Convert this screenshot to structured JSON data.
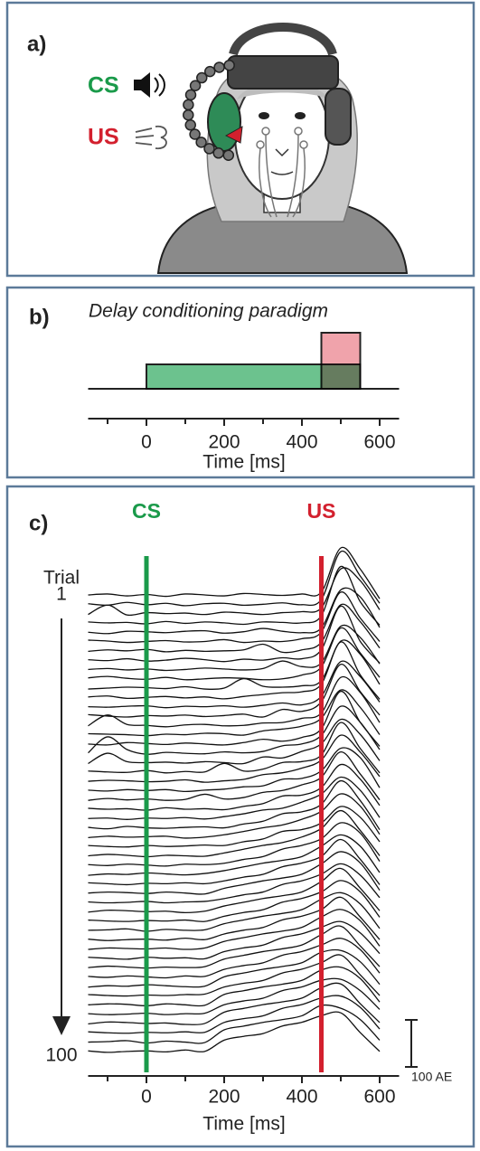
{
  "panel_a": {
    "label": "a)",
    "cs": "CS",
    "us": "US"
  },
  "chart_data": [
    {
      "type": "timeline",
      "label": "b)",
      "title": "Delay conditioning paradigm",
      "x_label": "Time [ms]",
      "xlim": [
        -150,
        650
      ],
      "xticks": [
        0,
        200,
        400,
        600
      ],
      "minor_xticks": [
        -100,
        100,
        300,
        500
      ],
      "stimuli": [
        {
          "start": 0,
          "end": 550,
          "color": "#6cc28e"
        },
        {
          "start": 450,
          "end": 550,
          "color": "#f0a3ab"
        }
      ]
    },
    {
      "type": "traces",
      "label": "c)",
      "x_label": "Time [ms]",
      "y_label": "Trial",
      "xlim": [
        -150,
        650
      ],
      "xticks": [
        0,
        200,
        400,
        600
      ],
      "minor_xticks": [
        -100,
        100,
        300,
        500
      ],
      "ylim": [
        1,
        100
      ],
      "yticks": [
        1,
        100
      ],
      "markers": [
        {
          "label": "CS",
          "x": 0,
          "color": "#1a9a4a"
        },
        {
          "label": "US",
          "x": 450,
          "color": "#d3202e"
        }
      ],
      "scale_bar": {
        "value": 100,
        "label": "100 AE"
      },
      "x": [
        -150,
        -100,
        -50,
        0,
        50,
        100,
        150,
        200,
        250,
        300,
        350,
        400,
        450,
        500,
        550,
        600
      ],
      "traces": [
        {
          "trial": 1,
          "values": [
            0,
            2,
            -2,
            1,
            -3,
            2,
            0,
            -2,
            3,
            1,
            -1,
            2,
            6,
            100,
            55,
            -8
          ]
        },
        {
          "trial": 3,
          "values": [
            1,
            -2,
            4,
            -1,
            2,
            -3,
            1,
            2,
            -2,
            0,
            3,
            -1,
            10,
            112,
            60,
            2
          ]
        },
        {
          "trial": 5,
          "values": [
            -2,
            18,
            -3,
            2,
            0,
            1,
            -2,
            3,
            1,
            -2,
            2,
            4,
            12,
            95,
            70,
            8
          ]
        },
        {
          "trial": 7,
          "values": [
            2,
            0,
            1,
            -2,
            3,
            -1,
            2,
            0,
            -3,
            2,
            1,
            0,
            15,
            120,
            45,
            -5
          ]
        },
        {
          "trial": 9,
          "values": [
            0,
            -3,
            2,
            1,
            -1,
            2,
            3,
            -2,
            1,
            8,
            2,
            -1,
            9,
            90,
            75,
            10
          ]
        },
        {
          "trial": 11,
          "values": [
            3,
            1,
            -2,
            0,
            2,
            -1,
            0,
            4,
            -2,
            1,
            0,
            6,
            20,
            105,
            50,
            0
          ]
        },
        {
          "trial": 13,
          "values": [
            -1,
            2,
            0,
            3,
            -2,
            1,
            -1,
            0,
            2,
            14,
            -3,
            2,
            18,
            98,
            62,
            6
          ]
        },
        {
          "trial": 15,
          "values": [
            1,
            -1,
            3,
            -2,
            0,
            4,
            1,
            -3,
            2,
            0,
            5,
            3,
            22,
            115,
            40,
            -6
          ]
        },
        {
          "trial": 17,
          "values": [
            0,
            2,
            -1,
            1,
            -2,
            0,
            3,
            1,
            -1,
            2,
            18,
            6,
            14,
            92,
            68,
            12
          ]
        },
        {
          "trial": 19,
          "values": [
            2,
            5,
            1,
            -1,
            3,
            -2,
            0,
            2,
            1,
            -2,
            0,
            8,
            25,
            108,
            55,
            3
          ]
        },
        {
          "trial": 21,
          "values": [
            -2,
            0,
            2,
            1,
            -1,
            3,
            -2,
            0,
            20,
            4,
            2,
            5,
            16,
            100,
            72,
            8
          ]
        },
        {
          "trial": 23,
          "values": [
            1,
            3,
            -2,
            0,
            2,
            -1,
            1,
            -3,
            2,
            6,
            10,
            12,
            28,
            118,
            48,
            -4
          ]
        },
        {
          "trial": 25,
          "values": [
            0,
            -1,
            1,
            2,
            -2,
            1,
            0,
            2,
            -1,
            3,
            8,
            4,
            22,
            96,
            64,
            10
          ]
        },
        {
          "trial": 27,
          "values": [
            3,
            0,
            -2,
            1,
            0,
            2,
            -1,
            1,
            4,
            -2,
            14,
            10,
            30,
            110,
            52,
            2
          ]
        },
        {
          "trial": 29,
          "values": [
            -1,
            22,
            2,
            0,
            -3,
            1,
            2,
            -1,
            0,
            5,
            6,
            15,
            26,
            102,
            70,
            6
          ]
        },
        {
          "trial": 31,
          "values": [
            2,
            1,
            0,
            -2,
            1,
            0,
            3,
            2,
            -1,
            8,
            12,
            18,
            35,
            95,
            58,
            0
          ]
        },
        {
          "trial": 33,
          "values": [
            0,
            -2,
            3,
            1,
            -1,
            2,
            0,
            -2,
            3,
            10,
            6,
            14,
            32,
            112,
            46,
            -5
          ]
        },
        {
          "trial": 35,
          "values": [
            1,
            35,
            8,
            -2,
            2,
            0,
            -1,
            3,
            1,
            4,
            16,
            20,
            38,
            100,
            66,
            8
          ]
        },
        {
          "trial": 37,
          "values": [
            -2,
            20,
            2,
            0,
            1,
            -1,
            2,
            0,
            -2,
            12,
            10,
            24,
            40,
            92,
            60,
            4
          ]
        },
        {
          "trial": 39,
          "values": [
            2,
            0,
            -1,
            3,
            -2,
            1,
            0,
            18,
            2,
            6,
            20,
            22,
            36,
            105,
            50,
            -2
          ]
        },
        {
          "trial": 41,
          "values": [
            0,
            2,
            1,
            -1,
            0,
            3,
            -2,
            1,
            4,
            14,
            18,
            28,
            45,
            98,
            62,
            10
          ]
        },
        {
          "trial": 43,
          "values": [
            1,
            -1,
            2,
            0,
            2,
            -2,
            1,
            3,
            8,
            10,
            24,
            26,
            42,
            90,
            70,
            6
          ]
        },
        {
          "trial": 45,
          "values": [
            -1,
            3,
            0,
            2,
            -1,
            1,
            12,
            2,
            5,
            16,
            20,
            32,
            48,
            102,
            55,
            0
          ]
        },
        {
          "trial": 47,
          "values": [
            2,
            0,
            1,
            -2,
            3,
            0,
            1,
            -1,
            6,
            12,
            28,
            30,
            46,
            95,
            64,
            8
          ]
        },
        {
          "trial": 49,
          "values": [
            0,
            1,
            -2,
            1,
            0,
            2,
            -1,
            4,
            10,
            18,
            22,
            35,
            52,
            88,
            60,
            2
          ]
        },
        {
          "trial": 51,
          "values": [
            1,
            -2,
            3,
            0,
            -1,
            1,
            2,
            0,
            8,
            14,
            30,
            34,
            50,
            100,
            58,
            -4
          ]
        },
        {
          "trial": 53,
          "values": [
            -1,
            2,
            0,
            1,
            2,
            -2,
            0,
            5,
            12,
            20,
            26,
            38,
            55,
            92,
            66,
            6
          ]
        },
        {
          "trial": 55,
          "values": [
            2,
            0,
            -1,
            2,
            0,
            1,
            3,
            2,
            10,
            16,
            32,
            36,
            50,
            85,
            62,
            10
          ]
        },
        {
          "trial": 57,
          "values": [
            0,
            3,
            1,
            -2,
            1,
            0,
            -1,
            6,
            14,
            22,
            28,
            40,
            58,
            96,
            54,
            0
          ]
        },
        {
          "trial": 59,
          "values": [
            1,
            -1,
            2,
            0,
            -2,
            2,
            1,
            4,
            12,
            18,
            34,
            42,
            56,
            90,
            68,
            8
          ]
        },
        {
          "trial": 61,
          "values": [
            -2,
            1,
            0,
            3,
            1,
            -1,
            2,
            8,
            16,
            24,
            30,
            38,
            60,
            84,
            60,
            4
          ]
        },
        {
          "trial": 63,
          "values": [
            2,
            0,
            -2,
            1,
            0,
            2,
            0,
            6,
            14,
            20,
            36,
            44,
            58,
            94,
            52,
            -2
          ]
        },
        {
          "trial": 65,
          "values": [
            0,
            2,
            1,
            -1,
            2,
            0,
            -2,
            10,
            18,
            26,
            32,
            40,
            62,
            88,
            64,
            6
          ]
        },
        {
          "trial": 67,
          "values": [
            1,
            -1,
            0,
            2,
            -1,
            1,
            2,
            8,
            16,
            22,
            38,
            46,
            60,
            82,
            58,
            10
          ]
        },
        {
          "trial": 69,
          "values": [
            -1,
            3,
            2,
            0,
            1,
            -2,
            1,
            12,
            20,
            28,
            34,
            42,
            64,
            92,
            50,
            2
          ]
        },
        {
          "trial": 71,
          "values": [
            2,
            0,
            -1,
            1,
            0,
            2,
            -1,
            10,
            18,
            24,
            40,
            48,
            62,
            86,
            62,
            8
          ]
        },
        {
          "trial": 73,
          "values": [
            0,
            1,
            3,
            -2,
            2,
            0,
            1,
            14,
            22,
            30,
            36,
            44,
            66,
            80,
            56,
            4
          ]
        },
        {
          "trial": 75,
          "values": [
            1,
            -2,
            0,
            1,
            -1,
            3,
            0,
            12,
            20,
            26,
            42,
            50,
            64,
            90,
            48,
            0
          ]
        },
        {
          "trial": 77,
          "values": [
            -1,
            2,
            1,
            0,
            2,
            -1,
            2,
            16,
            24,
            32,
            38,
            46,
            68,
            84,
            60,
            6
          ]
        },
        {
          "trial": 79,
          "values": [
            2,
            0,
            -2,
            2,
            0,
            1,
            -1,
            14,
            22,
            28,
            44,
            52,
            66,
            78,
            54,
            10
          ]
        },
        {
          "trial": 81,
          "values": [
            0,
            3,
            1,
            -1,
            1,
            0,
            2,
            18,
            26,
            34,
            40,
            48,
            70,
            88,
            46,
            2
          ]
        },
        {
          "trial": 83,
          "values": [
            1,
            -1,
            2,
            0,
            -2,
            2,
            1,
            16,
            24,
            30,
            46,
            54,
            68,
            82,
            58,
            8
          ]
        },
        {
          "trial": 85,
          "values": [
            -2,
            1,
            0,
            3,
            1,
            -1,
            0,
            20,
            28,
            36,
            42,
            50,
            72,
            76,
            52,
            4
          ]
        },
        {
          "trial": 87,
          "values": [
            2,
            0,
            -1,
            1,
            0,
            2,
            3,
            18,
            26,
            32,
            48,
            56,
            70,
            86,
            44,
            0
          ]
        },
        {
          "trial": 89,
          "values": [
            0,
            2,
            1,
            -2,
            2,
            0,
            -1,
            22,
            30,
            38,
            44,
            52,
            74,
            80,
            56,
            6
          ]
        },
        {
          "trial": 91,
          "values": [
            1,
            -1,
            0,
            2,
            -1,
            1,
            2,
            20,
            28,
            34,
            50,
            58,
            72,
            74,
            50,
            10
          ]
        },
        {
          "trial": 93,
          "values": [
            -1,
            3,
            2,
            0,
            1,
            -2,
            0,
            24,
            32,
            40,
            46,
            54,
            76,
            84,
            42,
            2
          ]
        },
        {
          "trial": 95,
          "values": [
            2,
            0,
            -1,
            1,
            0,
            2,
            1,
            22,
            30,
            36,
            52,
            60,
            74,
            78,
            54,
            8
          ]
        },
        {
          "trial": 97,
          "values": [
            0,
            1,
            3,
            -2,
            2,
            0,
            -1,
            26,
            34,
            42,
            48,
            56,
            78,
            72,
            48,
            4
          ]
        },
        {
          "trial": 99,
          "values": [
            1,
            -2,
            0,
            1,
            -1,
            3,
            0,
            24,
            32,
            38,
            54,
            62,
            76,
            82,
            40,
            0
          ]
        }
      ]
    }
  ]
}
